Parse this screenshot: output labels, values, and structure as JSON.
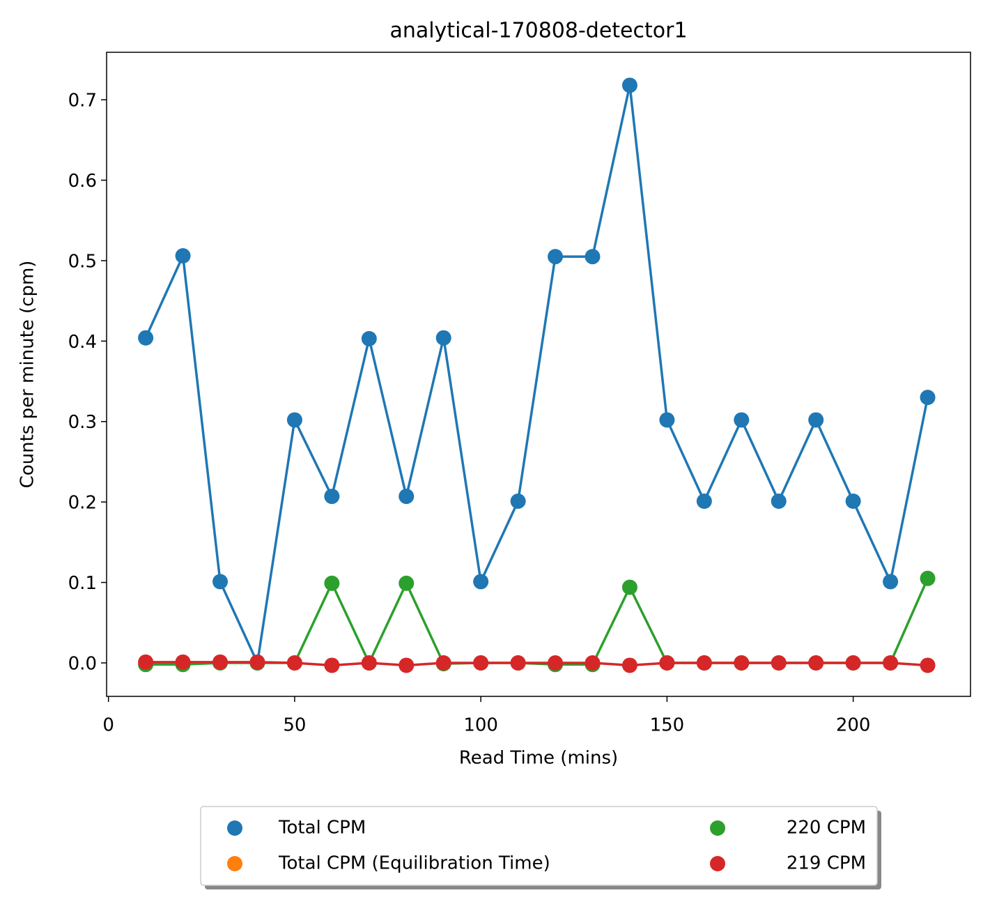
{
  "chart_data": {
    "type": "line",
    "title": "analytical-170808-detector1",
    "x_label": "Read Time (mins)",
    "y_label": "Counts per minute (cpm)",
    "x": [
      10,
      20,
      30,
      40,
      50,
      60,
      70,
      80,
      90,
      100,
      110,
      120,
      130,
      140,
      150,
      160,
      170,
      180,
      190,
      200,
      210,
      220
    ],
    "series": [
      {
        "name": "Total CPM",
        "color": "#1f77b4",
        "values": [
          0.404,
          0.506,
          0.101,
          0.0,
          0.302,
          0.207,
          0.403,
          0.207,
          0.404,
          0.101,
          0.201,
          0.505,
          0.505,
          0.718,
          0.302,
          0.201,
          0.302,
          0.201,
          0.302,
          0.201,
          0.101,
          0.33
        ]
      },
      {
        "name": "Total CPM (Equilibration Time)",
        "color": "#ff7f0e",
        "x": [],
        "values": []
      },
      {
        "name": "220 CPM",
        "color": "#2ca02c",
        "values": [
          -0.002,
          -0.002,
          0.0,
          0.0,
          0.0,
          0.099,
          0.0,
          0.099,
          -0.001,
          0.0,
          0.0,
          -0.002,
          -0.002,
          0.094,
          0.0,
          0.0,
          0.0,
          0.0,
          0.0,
          0.0,
          0.0,
          0.105
        ]
      },
      {
        "name": "219 CPM",
        "color": "#d62728",
        "values": [
          0.001,
          0.001,
          0.001,
          0.001,
          0.0,
          -0.003,
          0.0,
          -0.003,
          0.0,
          0.0,
          0.0,
          0.0,
          0.0,
          -0.003,
          0.0,
          0.0,
          0.0,
          0.0,
          0.0,
          0.0,
          0.0,
          -0.003
        ]
      }
    ],
    "xlim": [
      -0.5,
      231.5
    ],
    "ylim": [
      -0.0416,
      0.759
    ],
    "xticks": [
      0,
      50,
      100,
      150,
      200
    ],
    "yticks": [
      {
        "value": 0,
        "label": "0.0"
      },
      0.1,
      0.2,
      0.3,
      0.4,
      0.5,
      0.6,
      0.7
    ],
    "legend": "lower center"
  }
}
